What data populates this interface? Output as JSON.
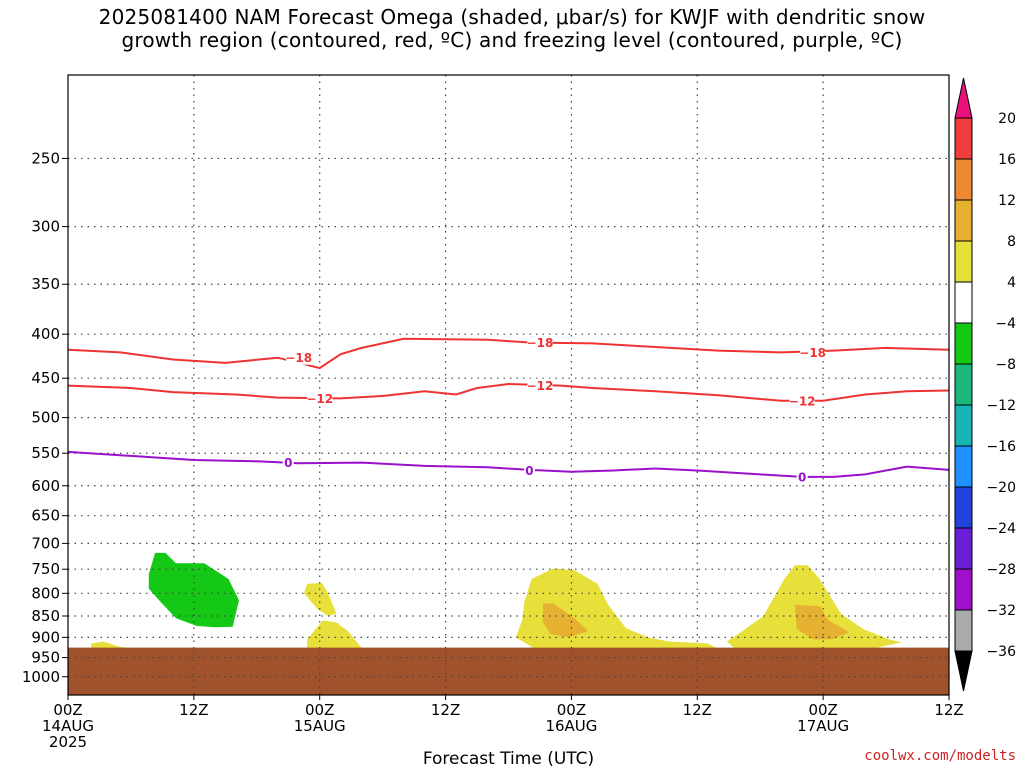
{
  "title": {
    "line1": "2025081400 NAM Forecast Omega (shaded, μbar/s) for KWJF with dendritic snow",
    "line2": "growth region (contoured, red, ºC) and freezing level (contoured, purple, ºC)"
  },
  "credit": "coolwx.com/modelts",
  "chart_data": {
    "type": "heatmap",
    "title": "2025081400 NAM Forecast Omega (shaded, μbar/s) for KWJF with dendritic snow growth region (contoured, red, ºC) and freezing level (contoured, purple, ºC)",
    "xlabel": "Forecast Time (UTC)",
    "ylabel": "",
    "xlim_hours": [
      0,
      84
    ],
    "ylim_hpa": [
      1050,
      200
    ],
    "y_scale": "log-pressure, inverted",
    "x_ticks": [
      {
        "h": 0,
        "l1": "00Z",
        "l2": "14AUG",
        "l3": "2025"
      },
      {
        "h": 12,
        "l1": "12Z",
        "l2": "",
        "l3": ""
      },
      {
        "h": 24,
        "l1": "00Z",
        "l2": "15AUG",
        "l3": ""
      },
      {
        "h": 36,
        "l1": "12Z",
        "l2": "",
        "l3": ""
      },
      {
        "h": 48,
        "l1": "00Z",
        "l2": "16AUG",
        "l3": ""
      },
      {
        "h": 60,
        "l1": "12Z",
        "l2": "",
        "l3": ""
      },
      {
        "h": 72,
        "l1": "00Z",
        "l2": "17AUG",
        "l3": ""
      },
      {
        "h": 84,
        "l1": "12Z",
        "l2": "",
        "l3": ""
      }
    ],
    "y_ticks": [
      250,
      300,
      350,
      400,
      450,
      500,
      550,
      600,
      650,
      700,
      750,
      800,
      850,
      900,
      950,
      1000
    ],
    "grid": true,
    "surface_pressure_hpa": 925,
    "surface_color": "#a0522d",
    "colorbar": {
      "labels": [
        "20",
        "16",
        "12",
        "8",
        "4",
        "−4",
        "−8",
        "−12",
        "−16",
        "−20",
        "−24",
        "−28",
        "−32",
        "−36"
      ],
      "colors": [
        "#e8127a",
        "#f03c3c",
        "#ee8833",
        "#e6b030",
        "#e8e03a",
        "#ffffff",
        "#16c816",
        "#1ab87a",
        "#16b4b4",
        "#1e90ff",
        "#2244dd",
        "#6a1ed8",
        "#a010c8",
        "#aaaaaa",
        "#000000"
      ]
    },
    "contours": [
      {
        "name": "-18",
        "color": "#ee3333",
        "points": [
          [
            0,
            417
          ],
          [
            5,
            420
          ],
          [
            10,
            428
          ],
          [
            15,
            432
          ],
          [
            20,
            426
          ],
          [
            24,
            438
          ],
          [
            26,
            422
          ],
          [
            28,
            415
          ],
          [
            32,
            405
          ],
          [
            40,
            406
          ],
          [
            44,
            409
          ],
          [
            50,
            410
          ],
          [
            56,
            414
          ],
          [
            62,
            418
          ],
          [
            68,
            420
          ],
          [
            73,
            418
          ],
          [
            78,
            415
          ],
          [
            84,
            417
          ]
        ],
        "labels": [
          [
            22,
            426
          ],
          [
            45,
            409
          ],
          [
            71,
            420
          ]
        ]
      },
      {
        "name": "-12",
        "color": "#ee3333",
        "points": [
          [
            0,
            459
          ],
          [
            6,
            462
          ],
          [
            10,
            467
          ],
          [
            16,
            470
          ],
          [
            20,
            474
          ],
          [
            26,
            475
          ],
          [
            30,
            472
          ],
          [
            34,
            466
          ],
          [
            37,
            470
          ],
          [
            39,
            462
          ],
          [
            42,
            457
          ],
          [
            47,
            459
          ],
          [
            50,
            462
          ],
          [
            56,
            466
          ],
          [
            62,
            471
          ],
          [
            68,
            478
          ],
          [
            72,
            478
          ],
          [
            76,
            470
          ],
          [
            80,
            466
          ],
          [
            84,
            465
          ]
        ],
        "labels": [
          [
            24,
            475
          ],
          [
            45,
            459
          ],
          [
            70,
            478
          ]
        ]
      },
      {
        "name": "0",
        "color": "#9911cc",
        "points": [
          [
            0,
            548
          ],
          [
            6,
            554
          ],
          [
            12,
            560
          ],
          [
            18,
            562
          ],
          [
            22,
            565
          ],
          [
            28,
            564
          ],
          [
            34,
            569
          ],
          [
            40,
            571
          ],
          [
            44,
            575
          ],
          [
            48,
            578
          ],
          [
            52,
            576
          ],
          [
            56,
            573
          ],
          [
            60,
            576
          ],
          [
            66,
            582
          ],
          [
            70,
            586
          ],
          [
            73,
            586
          ],
          [
            76,
            582
          ],
          [
            80,
            570
          ],
          [
            84,
            575
          ]
        ],
        "labels": [
          [
            21,
            564
          ],
          [
            44,
            576
          ],
          [
            70,
            586
          ]
        ]
      }
    ],
    "shaded_regions": [
      {
        "name": "omega-minus-4-to-minus-8-region-14aug",
        "color": "#16c816",
        "points": [
          [
            8.3,
            718
          ],
          [
            9.3,
            718
          ],
          [
            10.3,
            738
          ],
          [
            13,
            738
          ],
          [
            15.3,
            770
          ],
          [
            16.3,
            815
          ],
          [
            15.7,
            875
          ],
          [
            14,
            876
          ],
          [
            12.3,
            873
          ],
          [
            10.3,
            855
          ],
          [
            8.8,
            818
          ],
          [
            7.7,
            790
          ],
          [
            7.7,
            760
          ]
        ]
      },
      {
        "name": "omega-4-to-8-region-15aug-upper",
        "color": "#e8e03a",
        "points": [
          [
            22.8,
            780
          ],
          [
            24.2,
            778
          ],
          [
            24.8,
            800
          ],
          [
            25.6,
            845
          ],
          [
            24.8,
            850
          ],
          [
            23.8,
            835
          ],
          [
            22.5,
            800
          ]
        ]
      },
      {
        "name": "omega-4-to-8-region-15aug-lower",
        "color": "#e8e03a",
        "points": [
          [
            24.3,
            860
          ],
          [
            25.6,
            865
          ],
          [
            26.7,
            885
          ],
          [
            27.5,
            910
          ],
          [
            28.2,
            932
          ],
          [
            22.8,
            932
          ],
          [
            22.8,
            905
          ]
        ]
      },
      {
        "name": "omega-4-to-8-region-14aug",
        "color": "#e8e03a",
        "points": [
          [
            2.2,
            915
          ],
          [
            3.4,
            910
          ],
          [
            4.8,
            922
          ],
          [
            6.2,
            928
          ],
          [
            2.2,
            930
          ]
        ]
      },
      {
        "name": "omega-4-to-8-region-16aug",
        "color": "#e8e03a",
        "points": [
          [
            44.2,
            770
          ],
          [
            46.3,
            748
          ],
          [
            48.3,
            752
          ],
          [
            50.5,
            780
          ],
          [
            51.5,
            825
          ],
          [
            53.2,
            878
          ],
          [
            55.3,
            900
          ],
          [
            57.3,
            910
          ],
          [
            61,
            915
          ],
          [
            62,
            928
          ],
          [
            44.5,
            928
          ],
          [
            42.7,
            900
          ],
          [
            43.3,
            860
          ],
          [
            43.5,
            820
          ]
        ]
      },
      {
        "name": "omega-8-to-12-region-16aug",
        "color": "#e6b030",
        "points": [
          [
            45.3,
            822
          ],
          [
            46.3,
            822
          ],
          [
            48.3,
            855
          ],
          [
            49.6,
            885
          ],
          [
            47.7,
            900
          ],
          [
            46,
            892
          ],
          [
            45.3,
            865
          ]
        ]
      },
      {
        "name": "omega-4-to-8-region-17aug",
        "color": "#e8e03a",
        "points": [
          [
            68.3,
            770
          ],
          [
            69.3,
            742
          ],
          [
            70.5,
            742
          ],
          [
            71.5,
            765
          ],
          [
            72.5,
            800
          ],
          [
            73.7,
            845
          ],
          [
            75.8,
            880
          ],
          [
            78.3,
            905
          ],
          [
            79.5,
            912
          ],
          [
            77,
            926
          ],
          [
            63.5,
            926
          ],
          [
            62.8,
            910
          ],
          [
            64.2,
            887
          ],
          [
            66.3,
            850
          ]
        ]
      },
      {
        "name": "omega-8-to-12-region-17aug",
        "color": "#e6b030",
        "points": [
          [
            69.3,
            825
          ],
          [
            71.7,
            828
          ],
          [
            72.5,
            860
          ],
          [
            74.5,
            888
          ],
          [
            72.8,
            905
          ],
          [
            71,
            905
          ],
          [
            69.5,
            880
          ]
        ]
      }
    ]
  }
}
